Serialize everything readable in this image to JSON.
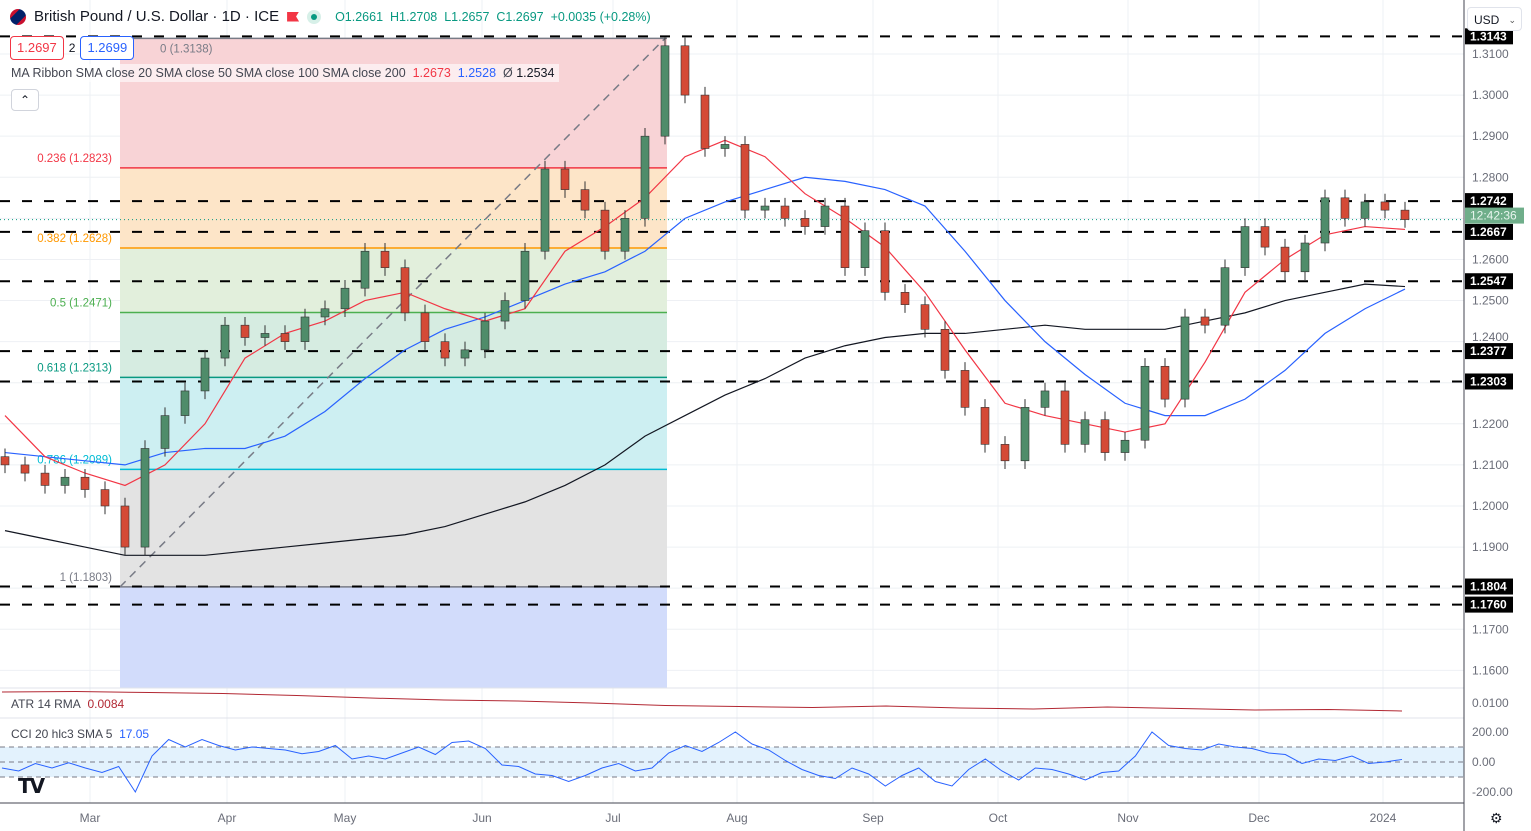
{
  "header": {
    "symbol_title": "British Pound / U.S. Dollar · 1D · ICE",
    "open": "O1.2661",
    "high": "H1.2708",
    "low": "L1.2657",
    "close": "C1.2697",
    "change": "+0.0035 (+0.28%)",
    "bid": "1.2697",
    "spread": "2",
    "ask": "1.2699"
  },
  "ribbon": {
    "label": "MA Ribbon SMA close 20 SMA close 50 SMA close 100 SMA close 200",
    "v1": "1.2673",
    "v2": "1.2528",
    "v3_prefix": "Ø",
    "v3": "1.2534",
    "collapse": "⌃"
  },
  "atr": {
    "label": "ATR 14 RMA",
    "value": "0.0084"
  },
  "cci": {
    "label": "CCI 20 hlc3 SMA 5",
    "value": "17.05"
  },
  "currency": {
    "selected": "USD"
  },
  "countdown": "12:42:36",
  "colors": {
    "up": "#4f8c6a",
    "down": "#d44a36",
    "ma20": "#f23645",
    "ma50": "#2962ff",
    "ma200": "#131722",
    "atr": "#b22833",
    "cci": "#2962ff"
  },
  "chart_data": {
    "type": "candlestick",
    "price_axis_ticks": [
      "1.3100",
      "1.3000",
      "1.2900",
      "1.2800",
      "1.2600",
      "1.2500",
      "1.2400",
      "1.2200",
      "1.2100",
      "1.2000",
      "1.1900",
      "1.1700",
      "1.1600"
    ],
    "time_axis_ticks": [
      "Mar",
      "Apr",
      "May",
      "Jun",
      "Jul",
      "Aug",
      "Sep",
      "Oct",
      "Nov",
      "Dec",
      "2024"
    ],
    "closes": [
      1.21,
      1.208,
      1.205,
      1.207,
      1.204,
      1.2,
      1.19,
      1.214,
      1.222,
      1.228,
      1.236,
      1.244,
      1.241,
      1.242,
      1.24,
      1.246,
      1.248,
      1.253,
      1.262,
      1.258,
      1.247,
      1.24,
      1.236,
      1.238,
      1.245,
      1.25,
      1.262,
      1.282,
      1.277,
      1.272,
      1.262,
      1.27,
      1.29,
      1.312,
      1.3,
      1.287,
      1.288,
      1.272,
      1.273,
      1.27,
      1.268,
      1.273,
      1.258,
      1.267,
      1.252,
      1.249,
      1.243,
      1.233,
      1.224,
      1.215,
      1.211,
      1.224,
      1.228,
      1.215,
      1.221,
      1.213,
      1.216,
      1.234,
      1.226,
      1.246,
      1.244,
      1.258,
      1.268,
      1.263,
      1.257,
      1.264,
      1.275,
      1.27,
      1.274,
      1.272,
      1.2697
    ],
    "sma20": [
      1.222,
      1.212,
      1.208,
      1.205,
      1.21,
      1.22,
      1.236,
      1.242,
      1.245,
      1.25,
      1.252,
      1.248,
      1.245,
      1.248,
      1.262,
      1.268,
      1.275,
      1.285,
      1.289,
      1.285,
      1.276,
      1.27,
      1.263,
      1.252,
      1.238,
      1.225,
      1.222,
      1.22,
      1.218,
      1.22,
      1.235,
      1.252,
      1.26,
      1.266,
      1.268,
      1.2673
    ],
    "sma50": [
      1.213,
      1.212,
      1.211,
      1.21,
      1.213,
      1.214,
      1.214,
      1.217,
      1.223,
      1.231,
      1.238,
      1.243,
      1.246,
      1.25,
      1.254,
      1.257,
      1.262,
      1.27,
      1.274,
      1.277,
      1.28,
      1.279,
      1.277,
      1.273,
      1.262,
      1.25,
      1.24,
      1.232,
      1.225,
      1.222,
      1.222,
      1.226,
      1.233,
      1.242,
      1.248,
      1.2528
    ],
    "sma200": [
      1.194,
      1.192,
      1.19,
      1.188,
      1.188,
      1.188,
      1.189,
      1.19,
      1.191,
      1.192,
      1.193,
      1.195,
      1.198,
      1.201,
      1.205,
      1.21,
      1.217,
      1.222,
      1.227,
      1.231,
      1.236,
      1.239,
      1.241,
      1.242,
      1.242,
      1.243,
      1.244,
      1.243,
      1.243,
      1.243,
      1.245,
      1.247,
      1.25,
      1.252,
      1.254,
      1.2534
    ],
    "fibonacci": [
      {
        "label": "0 (1.3138)",
        "price": 1.3138,
        "color": "#787b86"
      },
      {
        "label": "0.236 (1.2823)",
        "price": 1.2823,
        "color": "#f23645"
      },
      {
        "label": "0.382 (1.2628)",
        "price": 1.2628,
        "color": "#ff9800"
      },
      {
        "label": "0.5 (1.2471)",
        "price": 1.2471,
        "color": "#4caf50"
      },
      {
        "label": "0.618 (1.2313)",
        "price": 1.2313,
        "color": "#089981"
      },
      {
        "label": "0.786 (1.2089)",
        "price": 1.2089,
        "color": "#00bcd4"
      },
      {
        "label": "1 (1.1803)",
        "price": 1.1803,
        "color": "#787b86"
      }
    ],
    "horizontal_levels": [
      "1.3143",
      "1.2742",
      "1.2667",
      "1.2547",
      "1.2377",
      "1.2303",
      "1.1804",
      "1.1760"
    ],
    "atr_values": [
      0.0122,
      0.0123,
      0.0121,
      0.0119,
      0.0115,
      0.011,
      0.0106,
      0.0104,
      0.01,
      0.0095,
      0.0093,
      0.0091,
      0.0094,
      0.009,
      0.0088,
      0.0092,
      0.0089,
      0.0086,
      0.0087,
      0.0084
    ],
    "atr_axis_tick": "0.0100",
    "cci_axis_ticks": [
      "200.00",
      "0.00",
      "-200.00"
    ],
    "cci_values": [
      -40,
      -60,
      -10,
      -40,
      -5,
      -40,
      -70,
      -30,
      -200,
      40,
      150,
      100,
      150,
      110,
      80,
      100,
      90,
      80,
      55,
      70,
      110,
      20,
      40,
      20,
      60,
      100,
      50,
      130,
      140,
      90,
      -20,
      -30,
      -80,
      -90,
      -130,
      -90,
      -40,
      -10,
      -60,
      -40,
      60,
      110,
      70,
      130,
      200,
      120,
      80,
      10,
      -50,
      -90,
      -110,
      -40,
      -80,
      -160,
      -90,
      -40,
      -130,
      -160,
      -50,
      20,
      -60,
      -120,
      -40,
      -50,
      -80,
      -120,
      -70,
      -60,
      40,
      200,
      110,
      90,
      80,
      120,
      100,
      90,
      60,
      50,
      -10,
      20,
      10,
      40,
      -10,
      0,
      17.05
    ]
  }
}
